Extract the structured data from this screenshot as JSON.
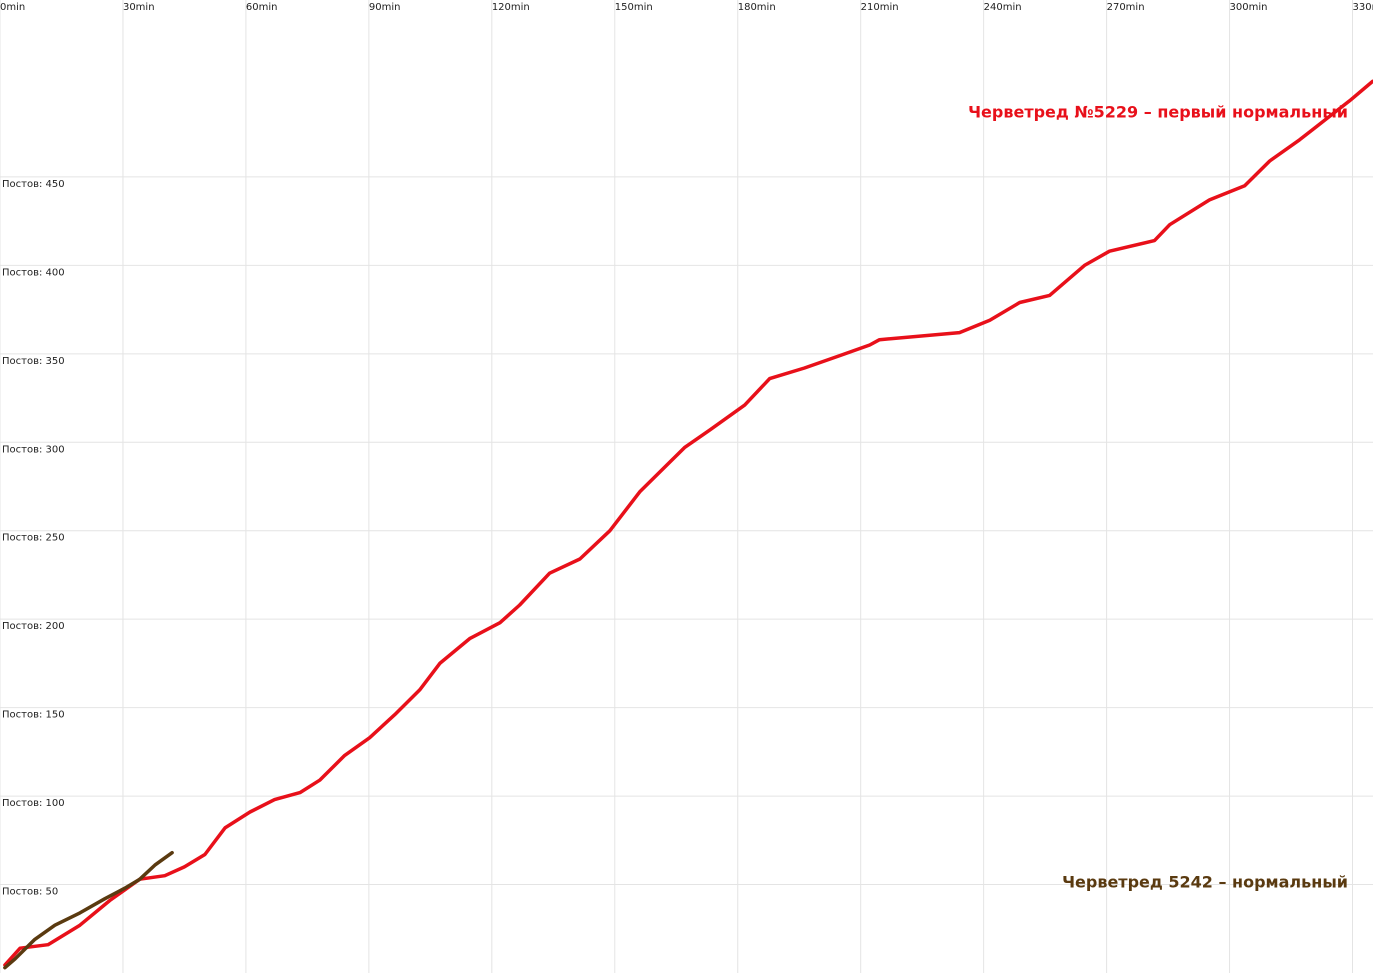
{
  "chart_data": {
    "type": "line",
    "xlim": [
      0,
      335
    ],
    "ylim": [
      0,
      550
    ],
    "xticks": [
      {
        "value": 0,
        "label": "0min"
      },
      {
        "value": 30,
        "label": "30min"
      },
      {
        "value": 60,
        "label": "60min"
      },
      {
        "value": 90,
        "label": "90min"
      },
      {
        "value": 120,
        "label": "120min"
      },
      {
        "value": 150,
        "label": "150min"
      },
      {
        "value": 180,
        "label": "180min"
      },
      {
        "value": 210,
        "label": "210min"
      },
      {
        "value": 240,
        "label": "240min"
      },
      {
        "value": 270,
        "label": "270min"
      },
      {
        "value": 300,
        "label": "300min"
      },
      {
        "value": 330,
        "label": "330min"
      }
    ],
    "yticks": [
      {
        "value": 50,
        "label": "Постов: 50"
      },
      {
        "value": 100,
        "label": "Постов: 100"
      },
      {
        "value": 150,
        "label": "Постов: 150"
      },
      {
        "value": 200,
        "label": "Постов: 200"
      },
      {
        "value": 250,
        "label": "Постов: 250"
      },
      {
        "value": 300,
        "label": "Постов: 300"
      },
      {
        "value": 350,
        "label": "Постов: 350"
      },
      {
        "value": 400,
        "label": "Постов: 400"
      },
      {
        "value": 450,
        "label": "Постов: 450"
      }
    ],
    "grid": true,
    "series": [
      {
        "name": "Черветред №5229 – первый нормальный",
        "color": "#e8101a",
        "x": [
          1.2,
          4.9,
          11.7,
          19.5,
          26.8,
          34.1,
          40.2,
          45,
          50,
          54.9,
          61,
          67,
          73.2,
          78,
          84.1,
          90.2,
          96.3,
          102.4,
          107.3,
          114.6,
          122,
          126.8,
          134.1,
          141.5,
          148.8,
          156.1,
          167,
          173.2,
          181.7,
          187.8,
          196.3,
          204.9,
          212.2,
          214.6,
          234.1,
          241.5,
          248.8,
          256.1,
          264.6,
          270.7,
          281.7,
          285.4,
          295.1,
          303.7,
          309.8,
          317.1,
          323.2,
          329.3,
          334.9
        ],
        "values": [
          4.5,
          14,
          16,
          27,
          41,
          53,
          55,
          60,
          67,
          82,
          91,
          98,
          102,
          109,
          123,
          133,
          146,
          160,
          175,
          189,
          198,
          208,
          226,
          234,
          250,
          272,
          297,
          307,
          321,
          336,
          342,
          349,
          355,
          358,
          362,
          369,
          379,
          383,
          400,
          408,
          414,
          423,
          437,
          445,
          459,
          471,
          482,
          493,
          504
        ]
      },
      {
        "name": "Черветред 5242 – нормальный",
        "color": "#5a3a10",
        "x": [
          1.2,
          3.7,
          8.5,
          13.4,
          19.5,
          25.6,
          30.5,
          34.1,
          37.8,
          42
        ],
        "values": [
          3,
          8,
          19,
          27,
          34,
          42,
          48,
          53,
          61,
          68
        ]
      }
    ]
  }
}
